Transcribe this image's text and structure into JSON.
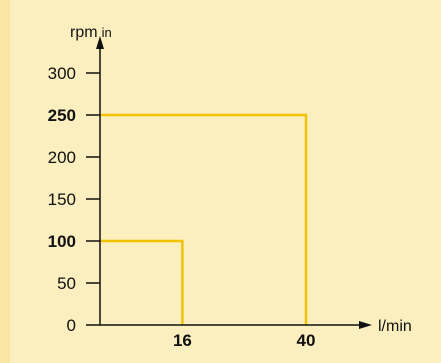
{
  "chart_data": {
    "type": "line",
    "y_axis": {
      "label": "rpm",
      "label_suffix": "in",
      "ylim": [
        0,
        300
      ],
      "ticks": [
        {
          "value": 0,
          "label": "0",
          "bold": false
        },
        {
          "value": 50,
          "label": "50",
          "bold": false
        },
        {
          "value": 100,
          "label": "100",
          "bold": true
        },
        {
          "value": 150,
          "label": "150",
          "bold": false
        },
        {
          "value": 200,
          "label": "200",
          "bold": false
        },
        {
          "value": 250,
          "label": "250",
          "bold": true
        },
        {
          "value": 300,
          "label": "300",
          "bold": false
        }
      ]
    },
    "x_axis": {
      "label": "l/min",
      "ticks": [
        {
          "value": 16,
          "label": "16",
          "bold": true
        },
        {
          "value": 40,
          "label": "40",
          "bold": true
        }
      ]
    },
    "series": [
      {
        "x_max": 16,
        "y_max": 100,
        "points": [
          [
            0,
            100
          ],
          [
            16,
            100
          ],
          [
            16,
            0
          ]
        ]
      },
      {
        "x_max": 40,
        "y_max": 250,
        "points": [
          [
            0,
            250
          ],
          [
            40,
            250
          ],
          [
            40,
            0
          ]
        ]
      }
    ],
    "grid": false,
    "colors": {
      "background": "#fbeebf",
      "axis": "#111111",
      "series": "#f2c200"
    }
  }
}
